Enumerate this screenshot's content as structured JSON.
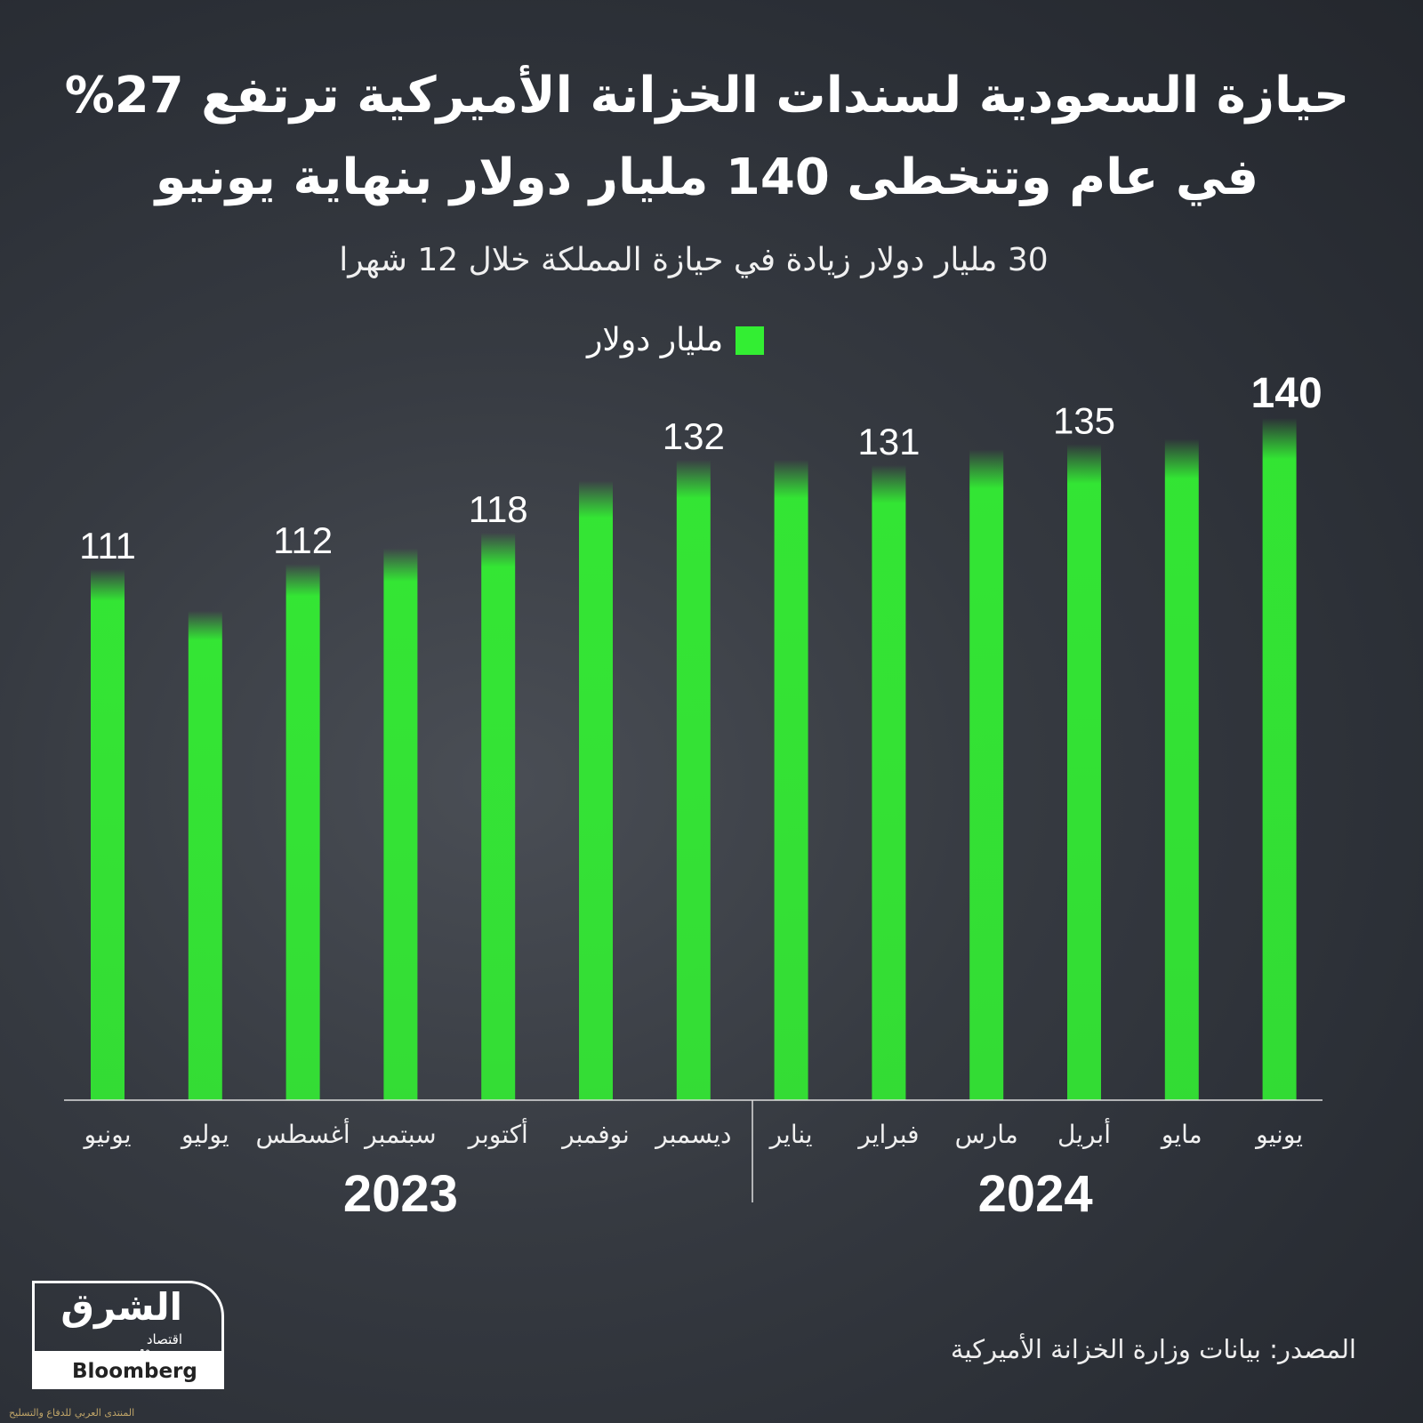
{
  "title_line1": "حيازة السعودية لسندات الخزانة الأميركية ترتفع 27%",
  "title_line2": "في عام وتتخطى 140 مليار دولار بنهاية يونيو",
  "subtitle": "30 مليار دولار زيادة في حيازة المملكة خلال 12 شهرا",
  "source": "المصدر: بيانات وزارة الخزانة الأميركية",
  "logo": {
    "name": "الشرق",
    "sub": "اقتصاد",
    "with": "مع",
    "partner": "Bloomberg"
  },
  "watermark": "المنتدى العربي للدفاع والتسليح",
  "colors": {
    "bar": "#33ee33",
    "background": "#2c3038"
  },
  "chart_data": {
    "type": "bar",
    "title": "حيازة السعودية لسندات الخزانة الأميركية",
    "legend": "مليار دولار",
    "legend_position": "top-center",
    "categories": [
      "يونيو",
      "يوليو",
      "أغسطس",
      "سبتمبر",
      "أكتوبر",
      "نوفمبر",
      "ديسمبر",
      "يناير",
      "فبراير",
      "مارس",
      "أبريل",
      "مايو",
      "يونيو"
    ],
    "years": [
      {
        "label": "2023",
        "from": 0,
        "to": 6
      },
      {
        "label": "2024",
        "from": 7,
        "to": 12
      }
    ],
    "values": [
      111,
      103,
      112,
      115,
      118,
      128,
      132,
      132,
      131,
      134,
      135,
      136,
      140
    ],
    "labels": [
      "111",
      "",
      "112",
      "",
      "118",
      "",
      "132",
      "",
      "131",
      "",
      "135",
      "",
      "140"
    ],
    "unit": "مليار دولار",
    "grid": false
  }
}
